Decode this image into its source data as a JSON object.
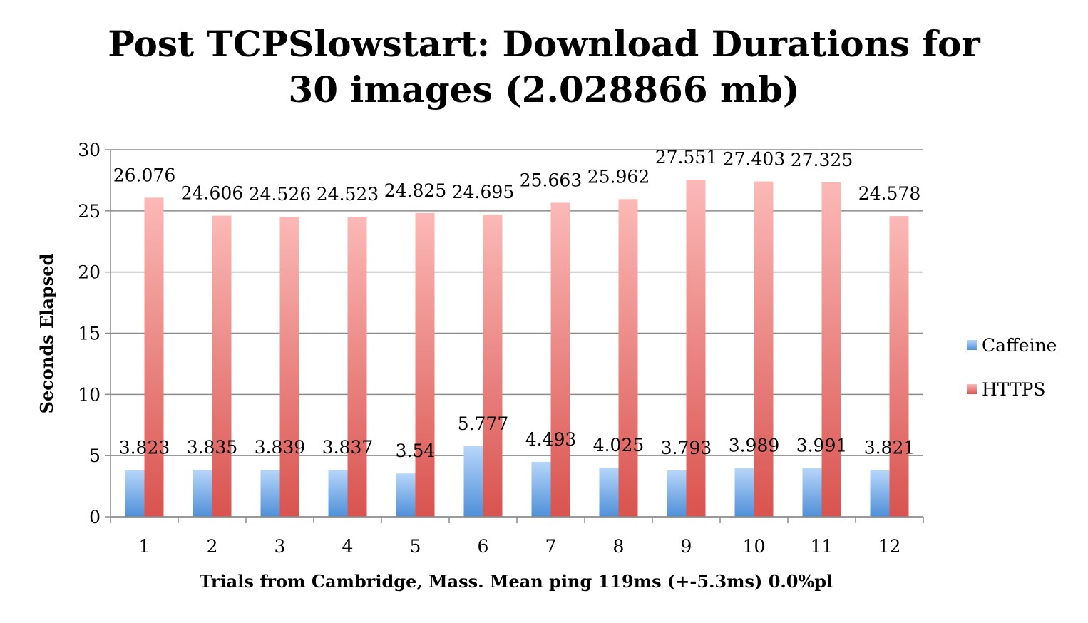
{
  "chart_data": {
    "type": "bar",
    "title_lines": [
      "Post TCPSlowstart: Download Durations for",
      "30 images (2.028866 mb)"
    ],
    "xlabel": "Trials from Cambridge, Mass. Mean ping 119ms (+-5.3ms) 0.0%pl",
    "ylabel": "Seconds Elapsed",
    "ylim": [
      0,
      30
    ],
    "yticks": [
      0,
      5,
      10,
      15,
      20,
      25,
      30
    ],
    "grid": true,
    "legend_position": "right",
    "categories": [
      "1",
      "2",
      "3",
      "4",
      "5",
      "6",
      "7",
      "8",
      "9",
      "10",
      "11",
      "12"
    ],
    "series": [
      {
        "name": "Caffeine",
        "color": "#4f8fd8",
        "values": [
          3.823,
          3.835,
          3.839,
          3.837,
          3.54,
          5.777,
          4.493,
          4.025,
          3.793,
          3.989,
          3.991,
          3.821
        ],
        "labels": [
          "3.823",
          "3.835",
          "3.839",
          "3.837",
          "3.54",
          "5.777",
          "4.493",
          "4.025",
          "3.793",
          "3.989",
          "3.991",
          "3.821"
        ]
      },
      {
        "name": "HTTPS",
        "color": "#d9534f",
        "values": [
          26.076,
          24.606,
          24.526,
          24.523,
          24.825,
          24.695,
          25.663,
          25.962,
          27.551,
          27.403,
          27.325,
          24.578
        ],
        "labels": [
          "26.076",
          "24.606",
          "24.526",
          "24.523",
          "24.825",
          "24.695",
          "25.663",
          "25.962",
          "27.551",
          "27.403",
          "27.325",
          "24.578"
        ]
      }
    ]
  }
}
